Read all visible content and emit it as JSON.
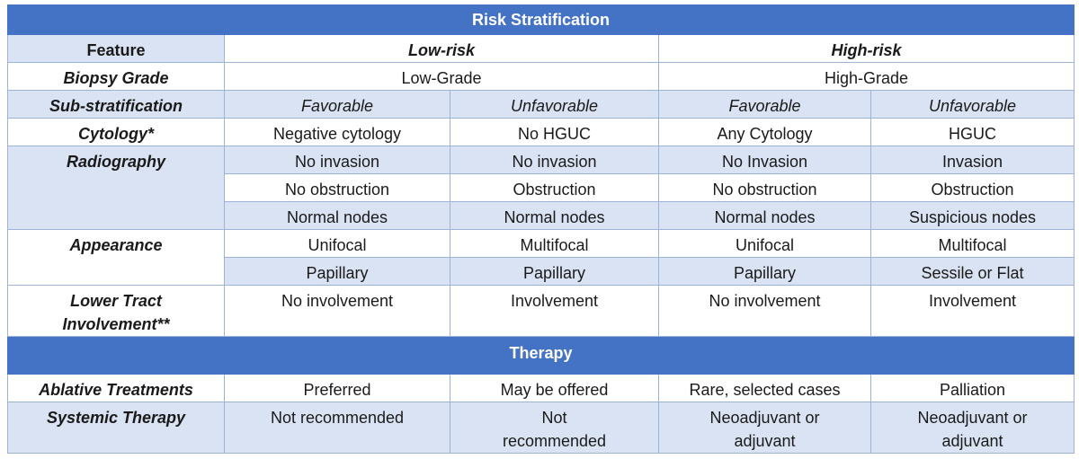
{
  "title": "Risk Stratification",
  "header": {
    "feature": "Feature",
    "low": "Low-risk",
    "high": "High-risk"
  },
  "biopsy": {
    "label": "Biopsy Grade",
    "low": "Low-Grade",
    "high": "High-Grade"
  },
  "substrat": {
    "label": "Sub-stratification",
    "c1": "Favorable",
    "c2": "Unfavorable",
    "c3": "Favorable",
    "c4": "Unfavorable"
  },
  "cytology": {
    "label": "Cytology*",
    "c1": "Negative cytology",
    "c2": "No HGUC",
    "c3": "Any Cytology",
    "c4": "HGUC"
  },
  "radiography": {
    "label": "Radiography",
    "rows": [
      {
        "c1": "No invasion",
        "c2": "No invasion",
        "c3": "No Invasion",
        "c4": "Invasion"
      },
      {
        "c1": "No obstruction",
        "c2": "Obstruction",
        "c3": "No obstruction",
        "c4": "Obstruction"
      },
      {
        "c1": "Normal nodes",
        "c2": "Normal nodes",
        "c3": "Normal nodes",
        "c4": "Suspicious nodes"
      }
    ]
  },
  "appearance": {
    "label": "Appearance",
    "rows": [
      {
        "c1": "Unifocal",
        "c2": "Multifocal",
        "c3": "Unifocal",
        "c4": "Multifocal"
      },
      {
        "c1": "Papillary",
        "c2": "Papillary",
        "c3": "Papillary",
        "c4": "Sessile or Flat"
      }
    ]
  },
  "lowertract": {
    "label1": "Lower Tract",
    "label2": "Involvement**",
    "c1": "No involvement",
    "c2": "Involvement",
    "c3": "No involvement",
    "c4": "Involvement"
  },
  "therapy_title": "Therapy",
  "ablative": {
    "label": "Ablative Treatments",
    "c1": "Preferred",
    "c2": "May be offered",
    "c3": "Rare, selected cases",
    "c4": "Palliation"
  },
  "systemic": {
    "label": "Systemic Therapy",
    "c1": "Not recommended",
    "c2a": "Not",
    "c2b": "recommended",
    "c3a": "Neoadjuvant or",
    "c3b": "adjuvant",
    "c4a": "Neoadjuvant or",
    "c4b": "adjuvant"
  },
  "colors": {
    "header_band": "#4472c4",
    "shade": "#dae3f3",
    "border": "#9db3d6"
  }
}
